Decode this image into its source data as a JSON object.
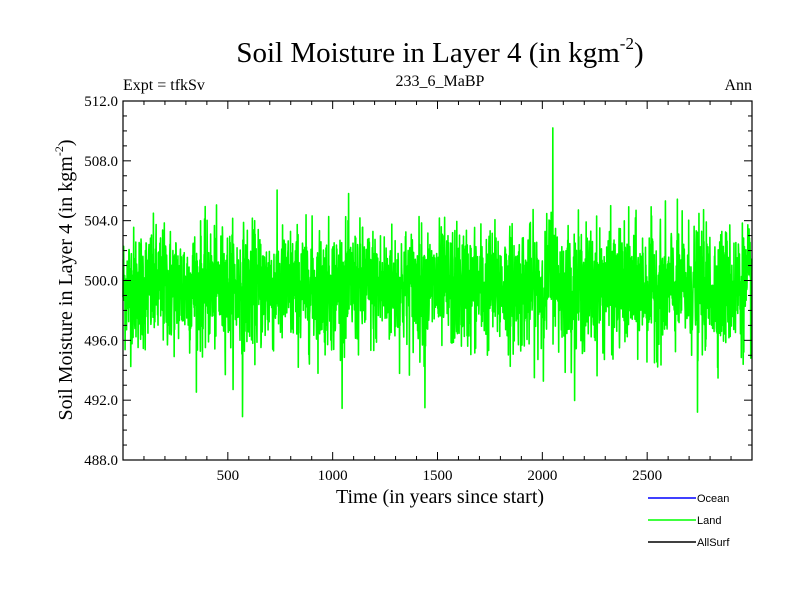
{
  "chart_data": {
    "type": "line",
    "title": "Soil Moisture in Layer 4 (in kgm",
    "title_exponent": "-2",
    "title_suffix": ")",
    "subtitle_left": "Expt = tfkSv",
    "subtitle_center": "233_6_MaBP",
    "subtitle_right": "Ann",
    "xlabel": "Time (in years since start)",
    "ylabel": "Soil Moisture in Layer 4 (in kgm",
    "ylabel_exponent": "-2",
    "ylabel_suffix": ")",
    "xlim": [
      0,
      3000
    ],
    "ylim": [
      488.0,
      512.0
    ],
    "x_ticks": [
      500,
      1000,
      1500,
      2000,
      2500
    ],
    "x_tick_labels": [
      "500",
      "1000",
      "1500",
      "2000",
      "2500"
    ],
    "y_ticks": [
      488,
      492,
      496,
      500,
      504,
      508,
      512
    ],
    "y_tick_labels": [
      "488.0",
      "492.0",
      "496.0",
      "500.0",
      "504.0",
      "508.0",
      "512.0"
    ],
    "series": [
      {
        "name": "Ocean",
        "color": "#0000ff",
        "values": []
      },
      {
        "name": "Land",
        "color": "#00ff00",
        "mean": 499.5,
        "noise_std": 2.0,
        "n_years": 3000,
        "notable_values": [
          {
            "x": 2050,
            "y": 510.2
          },
          {
            "x": 570,
            "y": 490.9
          },
          {
            "x": 1440,
            "y": 491.5
          },
          {
            "x": 2740,
            "y": 491.2
          }
        ]
      },
      {
        "name": "AllSurf",
        "color": "#000000",
        "values": []
      }
    ],
    "legend": [
      {
        "label": "Ocean",
        "color": "#0000ff"
      },
      {
        "label": "Land",
        "color": "#00ff00"
      },
      {
        "label": "AllSurf",
        "color": "#000000"
      }
    ],
    "legend_position": "bottom-right"
  }
}
